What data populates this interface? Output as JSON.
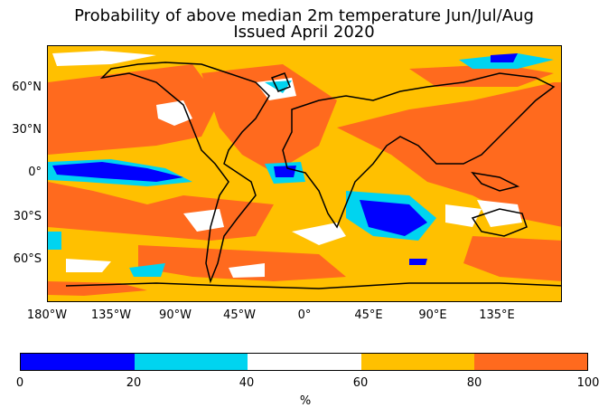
{
  "title_line1": "Probability of above median 2m temperature Jun/Jul/Aug",
  "title_line2": "Issued April 2020",
  "lat_labels": [
    "60°N",
    "30°N",
    "0°",
    "30°S",
    "60°S"
  ],
  "lon_labels": [
    "180°W",
    "135°W",
    "90°W",
    "45°W",
    "0°",
    "45°E",
    "90°E",
    "135°E"
  ],
  "colorbar": {
    "ticks": [
      "0",
      "20",
      "40",
      "60",
      "80",
      "100"
    ],
    "unit": "%",
    "bins": [
      {
        "range": "0-20",
        "color": "#0000ff"
      },
      {
        "range": "20-40",
        "color": "#00d4f0"
      },
      {
        "range": "40-60",
        "color": "#ffffff"
      },
      {
        "range": "60-80",
        "color": "#ffc000"
      },
      {
        "range": "80-100",
        "color": "#ff6a1e"
      }
    ]
  },
  "map": {
    "projection": "equirectangular",
    "background_color": "#ffc000",
    "coastline_color": "#000000"
  }
}
